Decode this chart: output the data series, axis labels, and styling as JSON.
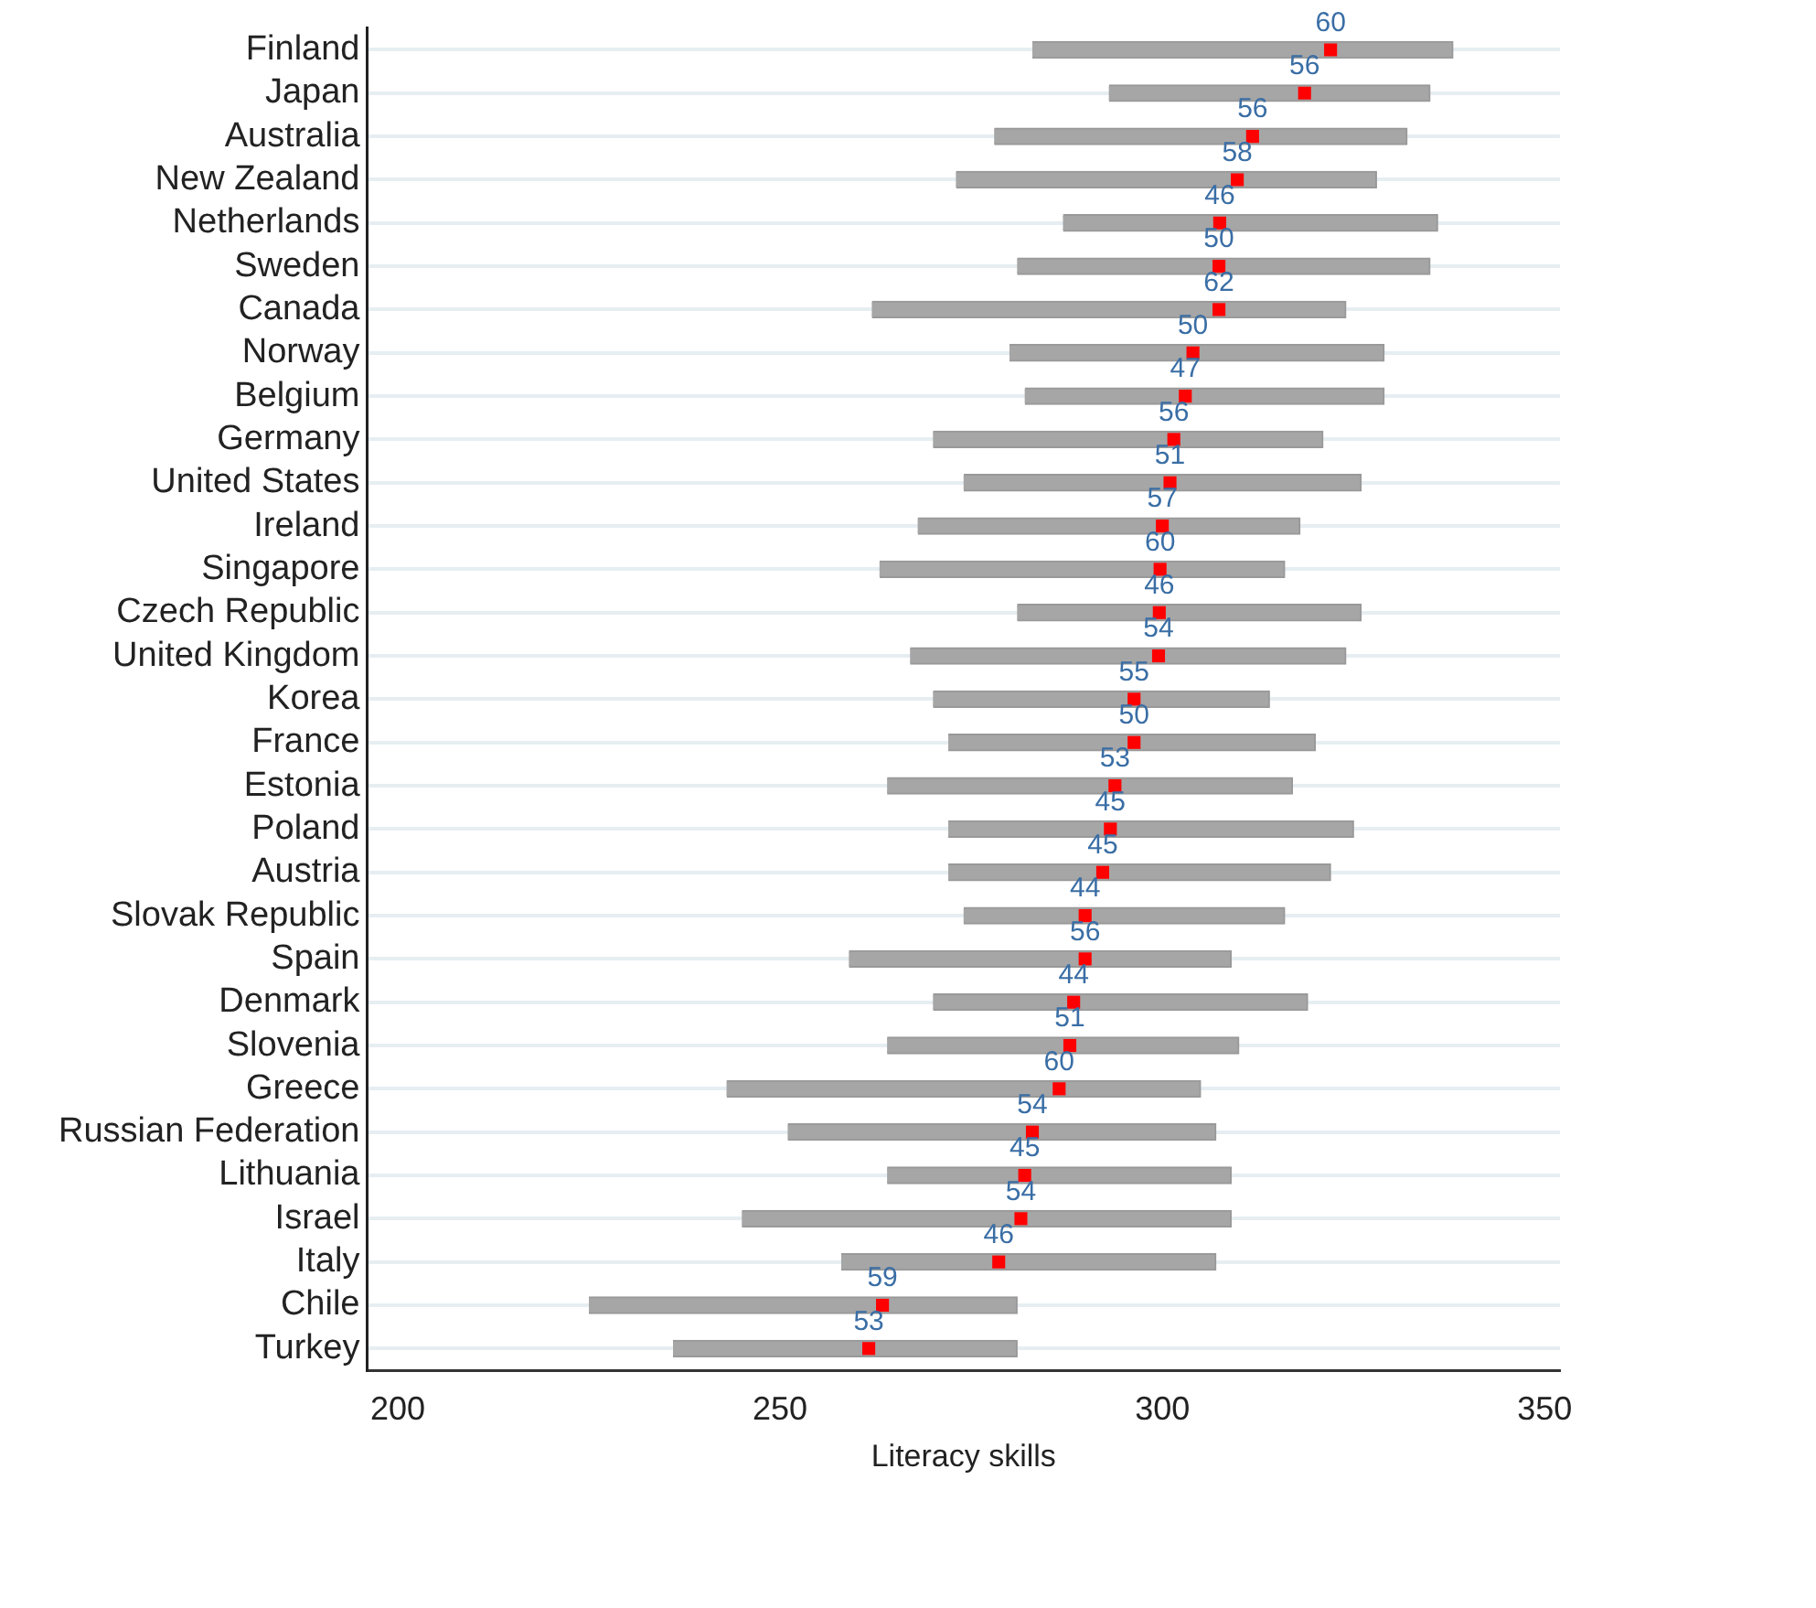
{
  "chart_data": {
    "type": "bar",
    "orientation": "horizontal",
    "xlabel": "Literacy skills",
    "xlim": [
      196,
      352
    ],
    "xticks": [
      200,
      250,
      300,
      350
    ],
    "grid": "y",
    "categories": [
      "Finland",
      "Japan",
      "Australia",
      "New Zealand",
      "Netherlands",
      "Sweden",
      "Canada",
      "Norway",
      "Belgium",
      "Germany",
      "United States",
      "Ireland",
      "Singapore",
      "Czech Republic",
      "United Kingdom",
      "Korea",
      "France",
      "Estonia",
      "Poland",
      "Austria",
      "Slovak Republic",
      "Spain",
      "Denmark",
      "Slovenia",
      "Greece",
      "Russian Federation",
      "Lithuania",
      "Israel",
      "Italy",
      "Chile",
      "Turkey"
    ],
    "series": [
      {
        "type": "bar",
        "color": "#a6a6a6",
        "base": [
          283,
          293,
          278,
          273,
          287,
          281,
          262,
          280,
          282,
          270,
          274,
          268,
          263,
          281,
          267,
          270,
          272,
          264,
          272,
          272,
          274,
          259,
          270,
          264,
          243,
          251,
          264,
          245,
          258,
          225,
          236
        ],
        "values": [
          55,
          42,
          54,
          55,
          49,
          54,
          62,
          49,
          47,
          51,
          52,
          50,
          53,
          45,
          57,
          44,
          48,
          53,
          53,
          50,
          42,
          50,
          49,
          46,
          62,
          56,
          45,
          64,
          49,
          56,
          45
        ]
      },
      {
        "type": "scatter",
        "color": "#ff0000",
        "values": [
          322,
          318.6,
          311.8,
          309.8,
          307.5,
          307.4,
          307.4,
          304,
          303,
          301.5,
          301,
          300,
          299.7,
          299.6,
          299.5,
          296.3,
          296.3,
          293.8,
          293.2,
          292.2,
          289.9,
          289.9,
          288.4,
          287.9,
          286.5,
          283,
          282,
          281.5,
          278.6,
          263.4,
          261.6
        ]
      }
    ],
    "annotations": [
      {
        "text": "60",
        "x": 322,
        "y": "Finland"
      },
      {
        "text": "56",
        "x": 318.6,
        "y": "Japan"
      },
      {
        "text": "56",
        "x": 311.8,
        "y": "Australia"
      },
      {
        "text": "58",
        "x": 309.8,
        "y": "New Zealand"
      },
      {
        "text": "46",
        "x": 307.5,
        "y": "Netherlands"
      },
      {
        "text": "50",
        "x": 307.4,
        "y": "Sweden"
      },
      {
        "text": "62",
        "x": 307.4,
        "y": "Canada"
      },
      {
        "text": "50",
        "x": 304,
        "y": "Norway"
      },
      {
        "text": "47",
        "x": 303,
        "y": "Belgium"
      },
      {
        "text": "56",
        "x": 301.5,
        "y": "Germany"
      },
      {
        "text": "51",
        "x": 301,
        "y": "United States"
      },
      {
        "text": "57",
        "x": 300,
        "y": "Ireland"
      },
      {
        "text": "60",
        "x": 299.7,
        "y": "Singapore"
      },
      {
        "text": "46",
        "x": 299.6,
        "y": "Czech Republic"
      },
      {
        "text": "54",
        "x": 299.5,
        "y": "United Kingdom"
      },
      {
        "text": "55",
        "x": 296.3,
        "y": "Korea"
      },
      {
        "text": "50",
        "x": 296.3,
        "y": "France"
      },
      {
        "text": "53",
        "x": 293.8,
        "y": "Estonia"
      },
      {
        "text": "45",
        "x": 293.2,
        "y": "Poland"
      },
      {
        "text": "45",
        "x": 292.2,
        "y": "Austria"
      },
      {
        "text": "44",
        "x": 289.9,
        "y": "Slovak Republic"
      },
      {
        "text": "56",
        "x": 289.9,
        "y": "Spain"
      },
      {
        "text": "44",
        "x": 288.4,
        "y": "Denmark"
      },
      {
        "text": "51",
        "x": 287.9,
        "y": "Slovenia"
      },
      {
        "text": "60",
        "x": 286.5,
        "y": "Greece"
      },
      {
        "text": "54",
        "x": 283,
        "y": "Russian Federation"
      },
      {
        "text": "45",
        "x": 282,
        "y": "Lithuania"
      },
      {
        "text": "54",
        "x": 281.5,
        "y": "Israel"
      },
      {
        "text": "46",
        "x": 278.6,
        "y": "Italy"
      },
      {
        "text": "59",
        "x": 263.4,
        "y": "Chile"
      },
      {
        "text": "53",
        "x": 261.6,
        "y": "Turkey"
      }
    ]
  }
}
